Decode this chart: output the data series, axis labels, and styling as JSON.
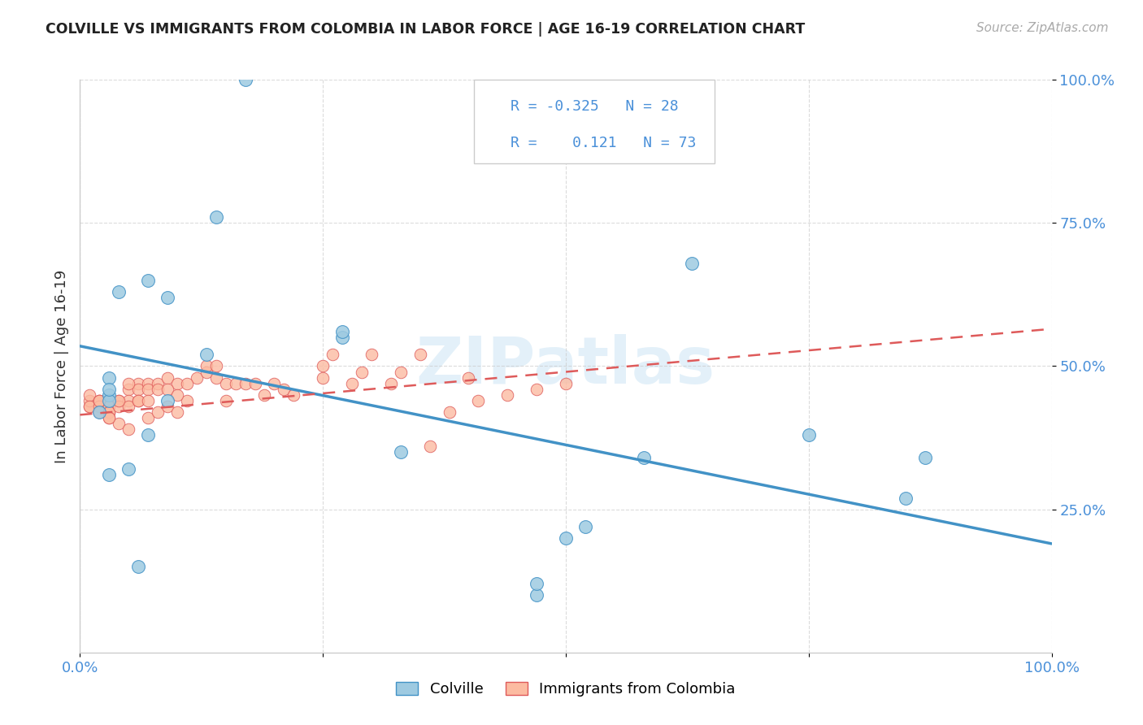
{
  "title": "COLVILLE VS IMMIGRANTS FROM COLOMBIA IN LABOR FORCE | AGE 16-19 CORRELATION CHART",
  "source": "Source: ZipAtlas.com",
  "ylabel": "In Labor Force | Age 16-19",
  "xlim": [
    0,
    1.0
  ],
  "ylim": [
    0,
    1.0
  ],
  "ytick_positions": [
    0.25,
    0.5,
    0.75,
    1.0
  ],
  "ytick_labels": [
    "25.0%",
    "50.0%",
    "75.0%",
    "100.0%"
  ],
  "colville_color": "#9ecae1",
  "colville_edge": "#4292c6",
  "colombia_color": "#fcbba1",
  "colombia_edge": "#de5a5a",
  "colville_R": -0.325,
  "colville_N": 28,
  "colombia_R": 0.121,
  "colombia_N": 73,
  "colville_scatter_x": [
    0.04,
    0.07,
    0.09,
    0.02,
    0.03,
    0.03,
    0.03,
    0.03,
    0.05,
    0.07,
    0.09,
    0.13,
    0.14,
    0.27,
    0.27,
    0.5,
    0.52,
    0.58,
    0.63,
    0.75,
    0.85,
    0.87,
    0.47,
    0.47,
    0.33,
    0.06,
    0.17,
    0.03
  ],
  "colville_scatter_y": [
    0.63,
    0.65,
    0.62,
    0.42,
    0.45,
    0.48,
    0.44,
    0.46,
    0.32,
    0.38,
    0.44,
    0.52,
    0.76,
    0.55,
    0.56,
    0.2,
    0.22,
    0.34,
    0.68,
    0.38,
    0.27,
    0.34,
    0.1,
    0.12,
    0.35,
    0.15,
    1.0,
    0.31
  ],
  "colville_line_x": [
    0.0,
    1.0
  ],
  "colville_line_y": [
    0.535,
    0.19
  ],
  "colombia_scatter_x": [
    0.01,
    0.01,
    0.01,
    0.01,
    0.02,
    0.02,
    0.02,
    0.02,
    0.03,
    0.03,
    0.03,
    0.03,
    0.03,
    0.04,
    0.04,
    0.04,
    0.05,
    0.05,
    0.05,
    0.05,
    0.06,
    0.06,
    0.06,
    0.07,
    0.07,
    0.07,
    0.08,
    0.08,
    0.09,
    0.09,
    0.1,
    0.1,
    0.11,
    0.12,
    0.13,
    0.14,
    0.15,
    0.16,
    0.17,
    0.18,
    0.2,
    0.21,
    0.22,
    0.25,
    0.26,
    0.28,
    0.3,
    0.32,
    0.33,
    0.35,
    0.38,
    0.4,
    0.44,
    0.47,
    0.5,
    0.02,
    0.03,
    0.04,
    0.05,
    0.06,
    0.07,
    0.08,
    0.09,
    0.1,
    0.11,
    0.13,
    0.14,
    0.15,
    0.19,
    0.25,
    0.29,
    0.36,
    0.41
  ],
  "colombia_scatter_y": [
    0.43,
    0.44,
    0.45,
    0.43,
    0.44,
    0.44,
    0.43,
    0.42,
    0.44,
    0.43,
    0.42,
    0.42,
    0.41,
    0.44,
    0.43,
    0.4,
    0.46,
    0.44,
    0.43,
    0.39,
    0.47,
    0.46,
    0.44,
    0.47,
    0.46,
    0.41,
    0.47,
    0.42,
    0.48,
    0.43,
    0.47,
    0.42,
    0.44,
    0.48,
    0.49,
    0.48,
    0.47,
    0.47,
    0.47,
    0.47,
    0.47,
    0.46,
    0.45,
    0.5,
    0.52,
    0.47,
    0.52,
    0.47,
    0.49,
    0.52,
    0.42,
    0.48,
    0.45,
    0.46,
    0.47,
    0.44,
    0.41,
    0.44,
    0.47,
    0.44,
    0.44,
    0.46,
    0.46,
    0.45,
    0.47,
    0.5,
    0.5,
    0.44,
    0.45,
    0.48,
    0.49,
    0.36,
    0.44
  ],
  "colombia_line_x": [
    0.0,
    1.0
  ],
  "colombia_line_y": [
    0.415,
    0.565
  ]
}
